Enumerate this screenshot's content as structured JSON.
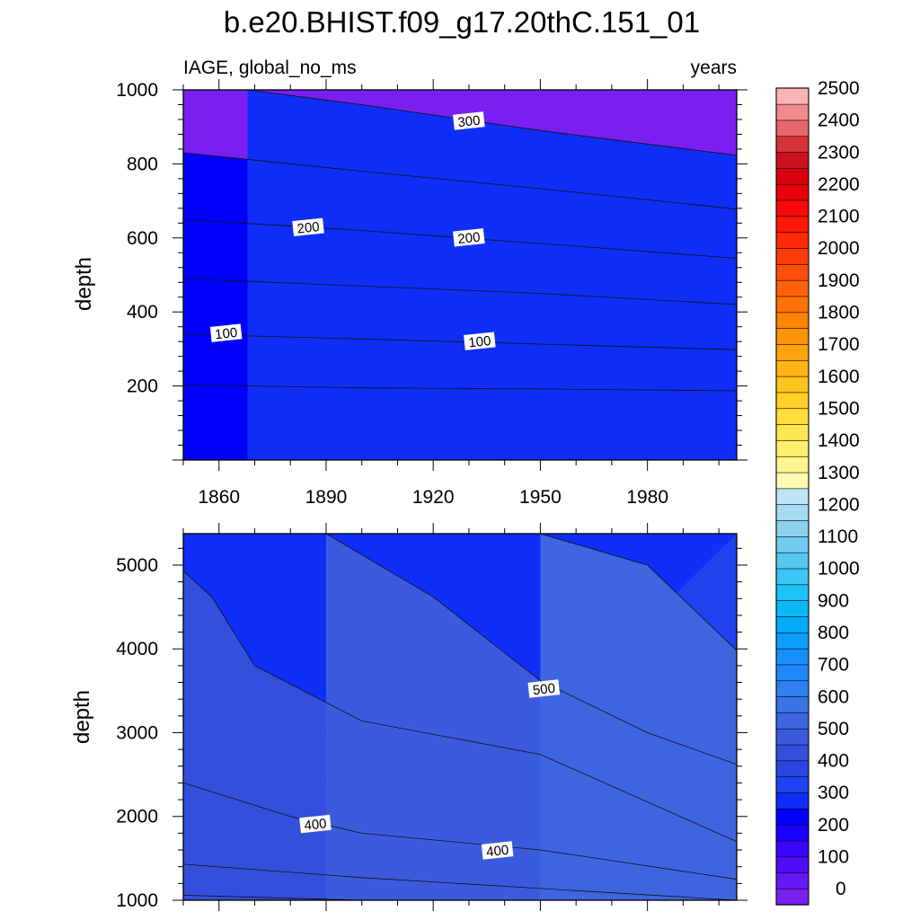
{
  "title": "b.e20.BHIST.f09_g17.20thC.151_01",
  "variable_label": "IAGE, global_no_ms",
  "units_label": "years",
  "chart_data": [
    {
      "type": "contour",
      "panel": "upper",
      "xlabel": "",
      "ylabel": "depth",
      "xlim": [
        1850,
        2005
      ],
      "ylim": [
        1000,
        0
      ],
      "x_ticks": [
        1860,
        1890,
        1920,
        1950,
        1980
      ],
      "x_tick_labels": [
        "1860",
        "1890",
        "1920",
        "1950",
        "1980"
      ],
      "y_ticks": [
        200,
        400,
        600,
        800,
        1000
      ],
      "y_tick_labels": [
        "200",
        "400",
        "600",
        "800",
        "1000"
      ],
      "contours": [
        {
          "level": 50,
          "points": [
            [
              1850,
              203
            ],
            [
              1900,
              195
            ],
            [
              1950,
              192
            ],
            [
              2005,
              187
            ]
          ]
        },
        {
          "level": 100,
          "points": [
            [
              1850,
              340
            ],
            [
              1900,
              327
            ],
            [
              1950,
              313
            ],
            [
              2005,
              298
            ]
          ]
        },
        {
          "level": 150,
          "points": [
            [
              1850,
              490
            ],
            [
              1900,
              470
            ],
            [
              1950,
              450
            ],
            [
              2005,
              420
            ]
          ]
        },
        {
          "level": 200,
          "points": [
            [
              1850,
              650
            ],
            [
              1900,
              620
            ],
            [
              1950,
              585
            ],
            [
              2005,
              545
            ]
          ]
        },
        {
          "level": 250,
          "points": [
            [
              1850,
              830
            ],
            [
              1900,
              780
            ],
            [
              1950,
              733
            ],
            [
              2005,
              678
            ]
          ]
        },
        {
          "level": 300,
          "points": [
            [
              1868,
              1000
            ],
            [
              1900,
              960
            ],
            [
              1950,
              890
            ],
            [
              2005,
              823
            ]
          ]
        }
      ],
      "contour_labels": [
        {
          "text": "100",
          "x": 1862,
          "y": 342
        },
        {
          "text": "100",
          "x": 1933,
          "y": 320
        },
        {
          "text": "200",
          "x": 1885,
          "y": 628
        },
        {
          "text": "200",
          "x": 1930,
          "y": 600
        },
        {
          "text": "300",
          "x": 1930,
          "y": 915
        }
      ]
    },
    {
      "type": "contour",
      "panel": "lower",
      "xlabel": "",
      "ylabel": "depth",
      "xlim": [
        1850,
        2005
      ],
      "ylim": [
        5375,
        1000
      ],
      "x_ticks": [
        1860,
        1890,
        1920,
        1950,
        1980
      ],
      "y_ticks": [
        1000,
        2000,
        3000,
        4000,
        5000
      ],
      "y_tick_labels": [
        "1000",
        "2000",
        "3000",
        "4000",
        "5000"
      ],
      "contours": [
        {
          "level": 350,
          "points": [
            [
              1850,
              1060
            ],
            [
              1900,
              1000
            ]
          ]
        },
        {
          "level": 350,
          "points": [
            [
              1850,
              1430
            ],
            [
              1900,
              1270
            ],
            [
              1950,
              1140
            ],
            [
              2005,
              1000
            ]
          ]
        },
        {
          "level": 400,
          "points": [
            [
              1850,
              2400
            ],
            [
              1880,
              2000
            ],
            [
              1900,
              1800
            ],
            [
              1950,
              1600
            ],
            [
              2005,
              1250
            ]
          ]
        },
        {
          "level": 450,
          "points": [
            [
              1850,
              4930
            ],
            [
              1858,
              4620
            ],
            [
              1870,
              3800
            ],
            [
              1900,
              3140
            ],
            [
              1950,
              2740
            ],
            [
              2005,
              1700
            ]
          ]
        },
        {
          "level": 500,
          "points": [
            [
              1890,
              5375
            ],
            [
              1920,
              4620
            ],
            [
              1950,
              3620
            ],
            [
              1980,
              3000
            ],
            [
              2005,
              2620
            ]
          ]
        },
        {
          "level": 550,
          "points": [
            [
              1950,
              5375
            ],
            [
              1980,
              5000
            ],
            [
              2005,
              3980
            ]
          ]
        }
      ],
      "contour_labels": [
        {
          "text": "400",
          "x": 1887,
          "y": 1905
        },
        {
          "text": "400",
          "x": 1938,
          "y": 1590
        },
        {
          "text": "500",
          "x": 1951,
          "y": 3520
        }
      ]
    }
  ],
  "colorbar": {
    "labels": [
      "0",
      "100",
      "200",
      "300",
      "400",
      "500",
      "600",
      "700",
      "800",
      "900",
      "1000",
      "1100",
      "1200",
      "1300",
      "1400",
      "1500",
      "1600",
      "1700",
      "1800",
      "1900",
      "2000",
      "2100",
      "2200",
      "2300",
      "2400",
      "2500"
    ],
    "colors": [
      "#7a1ff2",
      "#6617f6",
      "#4f0df8",
      "#3a05fb",
      "#1a00ff",
      "#0000ff",
      "#0f2ef7",
      "#1f41ef",
      "#2b45e4",
      "#344fdc",
      "#3a5bdd",
      "#3e66e1",
      "#3a74e6",
      "#2e7ff0",
      "#2088ff",
      "#188fff",
      "#0a9eff",
      "#02acf8",
      "#0db9f5",
      "#1dc2f8",
      "#3bc6f5",
      "#55c8f0",
      "#71cbf0",
      "#8dd1f0",
      "#a4daf3",
      "#bfe4f5",
      "#fffab4",
      "#fff48d",
      "#ffef6e",
      "#ffe650",
      "#ffdd3c",
      "#ffd12a",
      "#ffc41e",
      "#ffb514",
      "#ffa40c",
      "#ff9407",
      "#ff8304",
      "#ff7205",
      "#ff6008",
      "#ff4e0a",
      "#ff3c0a",
      "#ff2a07",
      "#ff1805",
      "#f70a08",
      "#e8000a",
      "#d8000f",
      "#cc1020",
      "#d83336",
      "#e8676a",
      "#f08a8e",
      "#fab4b6"
    ]
  }
}
